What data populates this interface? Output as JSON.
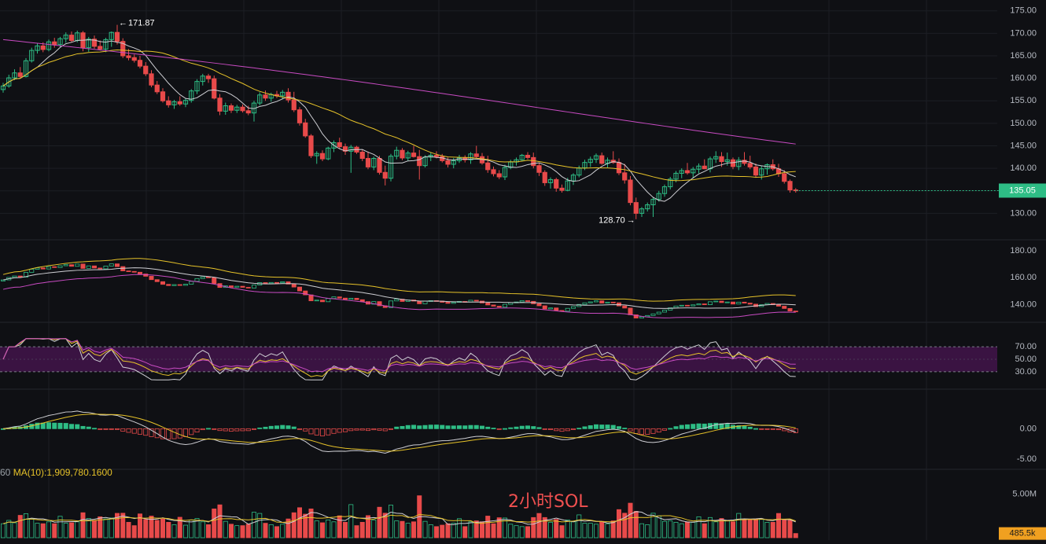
{
  "chart_data": [
    {
      "type": "candlestick",
      "panel": "price",
      "ylim": [
        125,
        176
      ],
      "y_ticks": [
        "175.00",
        "170.00",
        "165.00",
        "160.00",
        "155.00",
        "150.00",
        "145.00",
        "140.00",
        "135.00",
        "130.00"
      ],
      "high_marker": "171.87",
      "low_marker": "128.70",
      "last_price": "135.05",
      "ohlc": [
        [
          157.5,
          159.0,
          156.8,
          158.3
        ],
        [
          158.3,
          160.8,
          157.9,
          160.1
        ],
        [
          160.1,
          162.0,
          159.6,
          161.2
        ],
        [
          161.2,
          162.5,
          160.0,
          160.4
        ],
        [
          160.4,
          164.5,
          160.2,
          163.9
        ],
        [
          163.9,
          166.8,
          163.5,
          166.2
        ],
        [
          166.2,
          167.8,
          165.5,
          167.2
        ],
        [
          167.2,
          168.0,
          165.8,
          166.4
        ],
        [
          166.4,
          168.6,
          166.0,
          168.1
        ],
        [
          168.1,
          169.0,
          166.8,
          167.5
        ],
        [
          167.5,
          169.2,
          166.9,
          168.8
        ],
        [
          168.8,
          170.2,
          167.9,
          169.6
        ],
        [
          169.6,
          170.4,
          168.0,
          168.4
        ],
        [
          168.4,
          170.6,
          168.0,
          170.1
        ],
        [
          170.1,
          170.5,
          166.0,
          166.8
        ],
        [
          166.8,
          169.2,
          165.9,
          168.7
        ],
        [
          168.7,
          169.5,
          166.6,
          167.1
        ],
        [
          167.1,
          168.4,
          166.2,
          166.5
        ],
        [
          166.5,
          169.0,
          165.8,
          168.6
        ],
        [
          168.6,
          170.4,
          167.0,
          170.2
        ],
        [
          170.2,
          171.87,
          167.5,
          168.2
        ],
        [
          168.2,
          168.9,
          164.5,
          165.0
        ],
        [
          165.0,
          166.5,
          164.0,
          164.6
        ],
        [
          164.6,
          165.3,
          163.5,
          164.0
        ],
        [
          164.0,
          165.0,
          162.2,
          162.7
        ],
        [
          162.7,
          163.6,
          160.5,
          161.0
        ],
        [
          161.0,
          161.8,
          158.0,
          158.5
        ],
        [
          158.5,
          159.4,
          156.5,
          157.0
        ],
        [
          157.0,
          157.8,
          154.6,
          155.0
        ],
        [
          155.0,
          156.0,
          153.5,
          154.1
        ],
        [
          154.1,
          155.2,
          153.2,
          154.8
        ],
        [
          154.8,
          156.0,
          153.9,
          154.3
        ],
        [
          154.3,
          155.5,
          153.6,
          155.1
        ],
        [
          155.1,
          157.6,
          154.6,
          157.2
        ],
        [
          157.2,
          159.8,
          156.5,
          159.3
        ],
        [
          159.3,
          161.0,
          158.4,
          160.5
        ],
        [
          160.5,
          161.0,
          159.0,
          159.9
        ],
        [
          159.9,
          160.6,
          155.3,
          155.6
        ],
        [
          155.6,
          156.5,
          151.8,
          152.7
        ],
        [
          152.7,
          154.6,
          151.9,
          153.9
        ],
        [
          153.9,
          154.4,
          152.3,
          152.9
        ],
        [
          152.9,
          154.1,
          152.3,
          153.6
        ],
        [
          153.6,
          154.2,
          152.4,
          152.8
        ],
        [
          152.8,
          153.9,
          151.8,
          152.3
        ],
        [
          152.3,
          155.0,
          150.4,
          154.5
        ],
        [
          154.5,
          156.9,
          154.0,
          156.3
        ],
        [
          156.3,
          157.3,
          155.0,
          155.6
        ],
        [
          155.6,
          156.8,
          154.8,
          156.4
        ],
        [
          156.4,
          157.2,
          155.6,
          156.1
        ],
        [
          156.1,
          157.4,
          155.3,
          156.9
        ],
        [
          156.9,
          157.8,
          154.6,
          155.2
        ],
        [
          155.2,
          157.0,
          152.5,
          153.0
        ],
        [
          153.0,
          153.6,
          149.5,
          150.1
        ],
        [
          150.1,
          151.0,
          146.8,
          147.2
        ],
        [
          147.2,
          147.6,
          142.3,
          142.8
        ],
        [
          142.8,
          143.8,
          141.0,
          143.3
        ],
        [
          143.3,
          144.0,
          141.6,
          142.1
        ],
        [
          142.1,
          144.8,
          141.8,
          144.5
        ],
        [
          144.5,
          146.2,
          143.6,
          145.7
        ],
        [
          145.7,
          146.8,
          144.4,
          144.8
        ],
        [
          144.8,
          145.5,
          143.0,
          143.8
        ],
        [
          143.8,
          145.2,
          139.0,
          144.7
        ],
        [
          144.7,
          145.0,
          143.2,
          143.6
        ],
        [
          143.6,
          144.1,
          141.6,
          142.2
        ],
        [
          142.2,
          143.7,
          139.8,
          140.3
        ],
        [
          140.3,
          142.6,
          139.6,
          142.2
        ],
        [
          142.2,
          142.8,
          138.6,
          139.1
        ],
        [
          139.1,
          140.6,
          136.2,
          137.8
        ],
        [
          137.8,
          143.2,
          137.1,
          142.7
        ],
        [
          142.7,
          144.8,
          142.0,
          144.0
        ],
        [
          144.0,
          144.5,
          141.8,
          142.3
        ],
        [
          142.3,
          143.9,
          141.6,
          143.4
        ],
        [
          143.4,
          145.0,
          142.4,
          142.6
        ],
        [
          142.6,
          144.1,
          137.5,
          140.6
        ],
        [
          140.6,
          142.9,
          140.2,
          142.5
        ],
        [
          142.5,
          143.6,
          141.6,
          142.9
        ],
        [
          142.9,
          143.8,
          142.2,
          142.6
        ],
        [
          142.6,
          143.2,
          141.3,
          141.7
        ],
        [
          141.7,
          142.4,
          140.2,
          140.9
        ],
        [
          140.9,
          142.3,
          140.0,
          141.7
        ],
        [
          141.7,
          143.0,
          141.2,
          142.3
        ],
        [
          142.3,
          142.9,
          141.3,
          141.9
        ],
        [
          141.9,
          143.6,
          141.0,
          143.2
        ],
        [
          143.2,
          145.0,
          142.2,
          142.6
        ],
        [
          142.6,
          143.4,
          140.8,
          141.2
        ],
        [
          141.2,
          142.8,
          139.0,
          139.7
        ],
        [
          139.7,
          140.4,
          138.2,
          138.8
        ],
        [
          138.8,
          139.6,
          137.6,
          138.1
        ],
        [
          138.1,
          140.8,
          137.4,
          140.2
        ],
        [
          140.2,
          141.9,
          139.8,
          141.4
        ],
        [
          141.4,
          142.4,
          140.6,
          141.9
        ],
        [
          141.9,
          143.2,
          141.6,
          142.9
        ],
        [
          142.9,
          143.6,
          142.0,
          142.4
        ],
        [
          142.4,
          143.5,
          140.0,
          140.6
        ],
        [
          140.6,
          141.2,
          138.3,
          139.1
        ],
        [
          139.1,
          139.6,
          136.1,
          136.8
        ],
        [
          136.8,
          138.0,
          135.5,
          137.5
        ],
        [
          137.5,
          137.9,
          134.8,
          135.6
        ],
        [
          135.6,
          136.4,
          134.6,
          135.1
        ],
        [
          135.1,
          137.9,
          134.9,
          137.2
        ],
        [
          137.2,
          138.9,
          136.3,
          138.5
        ],
        [
          138.5,
          140.6,
          138.0,
          140.1
        ],
        [
          140.1,
          141.9,
          139.6,
          141.3
        ],
        [
          141.3,
          142.6,
          140.3,
          142.0
        ],
        [
          142.0,
          143.3,
          141.2,
          142.8
        ],
        [
          142.8,
          143.5,
          140.8,
          141.1
        ],
        [
          141.1,
          142.4,
          140.2,
          141.8
        ],
        [
          141.8,
          143.8,
          141.0,
          141.3
        ],
        [
          141.3,
          142.2,
          138.5,
          139.0
        ],
        [
          139.0,
          141.0,
          136.6,
          137.4
        ],
        [
          137.4,
          138.3,
          131.8,
          132.4
        ],
        [
          132.4,
          133.5,
          128.7,
          130.0
        ],
        [
          130.0,
          131.4,
          129.2,
          131.0
        ],
        [
          131.0,
          132.4,
          130.4,
          131.9
        ],
        [
          131.9,
          133.6,
          129.2,
          133.1
        ],
        [
          133.1,
          135.0,
          132.6,
          134.4
        ],
        [
          134.4,
          136.4,
          133.7,
          135.9
        ],
        [
          135.9,
          138.1,
          135.3,
          137.6
        ],
        [
          137.6,
          139.4,
          136.9,
          138.9
        ],
        [
          138.9,
          140.0,
          137.8,
          139.5
        ],
        [
          139.5,
          141.2,
          138.6,
          139.0
        ],
        [
          139.0,
          140.3,
          137.8,
          139.8
        ],
        [
          139.8,
          141.1,
          138.9,
          140.5
        ],
        [
          140.5,
          142.0,
          139.8,
          139.9
        ],
        [
          139.9,
          142.6,
          139.1,
          142.1
        ],
        [
          142.1,
          143.8,
          141.2,
          142.6
        ],
        [
          142.6,
          143.6,
          140.3,
          141.5
        ],
        [
          141.5,
          143.5,
          140.6,
          141.9
        ],
        [
          141.9,
          142.4,
          139.8,
          140.4
        ],
        [
          140.4,
          142.5,
          139.6,
          141.8
        ],
        [
          141.8,
          143.6,
          140.6,
          141.1
        ],
        [
          141.1,
          142.8,
          139.8,
          140.3
        ],
        [
          140.3,
          141.1,
          137.9,
          138.5
        ],
        [
          138.5,
          140.6,
          137.5,
          139.9
        ],
        [
          139.9,
          141.1,
          138.6,
          140.8
        ],
        [
          140.8,
          142.0,
          139.5,
          139.9
        ],
        [
          139.9,
          141.0,
          138.1,
          138.8
        ],
        [
          138.8,
          139.6,
          136.6,
          137.1
        ],
        [
          137.1,
          137.5,
          134.6,
          135.2
        ],
        [
          135.2,
          135.6,
          134.6,
          135.05
        ]
      ]
    },
    {
      "type": "line",
      "panel": "overlay-bands",
      "ylim": [
        128,
        184
      ],
      "y_ticks": [
        "180.00",
        "160.00",
        "140.00"
      ]
    },
    {
      "type": "line",
      "panel": "oscillator",
      "ylim": [
        16,
        84
      ],
      "band": [
        30,
        70
      ],
      "y_ticks": [
        "70.00",
        "50.00",
        "30.00"
      ]
    },
    {
      "type": "bar",
      "panel": "macd",
      "ylim": [
        -6.4,
        5.2
      ],
      "y_ticks": [
        "0.00",
        "-5.00"
      ]
    },
    {
      "type": "bar",
      "panel": "volume",
      "ylim": [
        0,
        7.6
      ],
      "unit": "M",
      "y_ticks": [
        "5.00M"
      ],
      "last_volume": "485.5k"
    }
  ],
  "legend": {
    "prefix": "60",
    "ma10": "MA(10):1,909,780.1600"
  },
  "watermark": "2小时SOL",
  "colors": {
    "up": "#2ebd85",
    "down": "#e84a4a",
    "ma_short": "#cfcfd4",
    "ma_mid": "#e6c229",
    "ma_long": "#c84bc2",
    "rsi_zone": "#3a1342",
    "last_price_bg": "#2ebd85",
    "volume_tag_bg": "#f0a020"
  }
}
